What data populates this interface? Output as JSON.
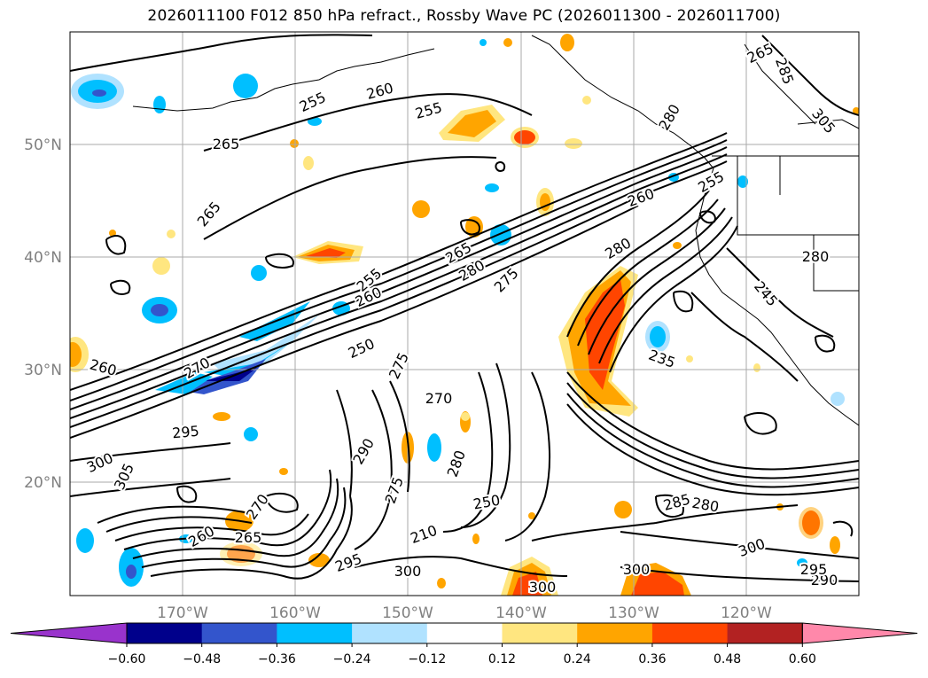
{
  "title": "2026011100 F012 850 hPa refract., Rossby Wave PC (2026011300 - 2026011700)",
  "map": {
    "lat_labels": [
      "50°N",
      "40°N",
      "30°N",
      "20°N"
    ],
    "lon_labels": [
      "170°W",
      "160°W",
      "150°W",
      "140°W",
      "130°W",
      "120°W"
    ],
    "contour_labels": [
      "255",
      "265",
      "265",
      "255",
      "260",
      "275",
      "280",
      "260",
      "250",
      "260",
      "265",
      "255",
      "280",
      "235",
      "245",
      "260",
      "270",
      "270",
      "295",
      "300",
      "305",
      "275",
      "290",
      "275",
      "260",
      "270",
      "265",
      "295",
      "300",
      "280",
      "285",
      "280",
      "300",
      "290",
      "295",
      "300",
      "250",
      "300",
      "280",
      "210",
      "265",
      "305",
      "285",
      "255",
      "280"
    ]
  },
  "colorbar": {
    "ticks": [
      "−0.60",
      "−0.48",
      "−0.36",
      "−0.24",
      "−0.12",
      "0.12",
      "0.24",
      "0.36",
      "0.48",
      "0.60"
    ],
    "colors": [
      "#9933cc",
      "#00008b",
      "#3355cc",
      "#00bfff",
      "#b0e2ff",
      "#ffffff",
      "#ffe680",
      "#ffa500",
      "#ff4500",
      "#b22222",
      "#ff88aa"
    ]
  },
  "shading": {
    "neg_fill": "#00bfff",
    "neg_light": "#b0e2ff",
    "neg_dark": "#3355cc",
    "neg_darkest": "#00008b",
    "pos_fill": "#ffa500",
    "pos_light": "#ffe680",
    "pos_dark": "#ff4500",
    "pos_darkest": "#b22222"
  }
}
